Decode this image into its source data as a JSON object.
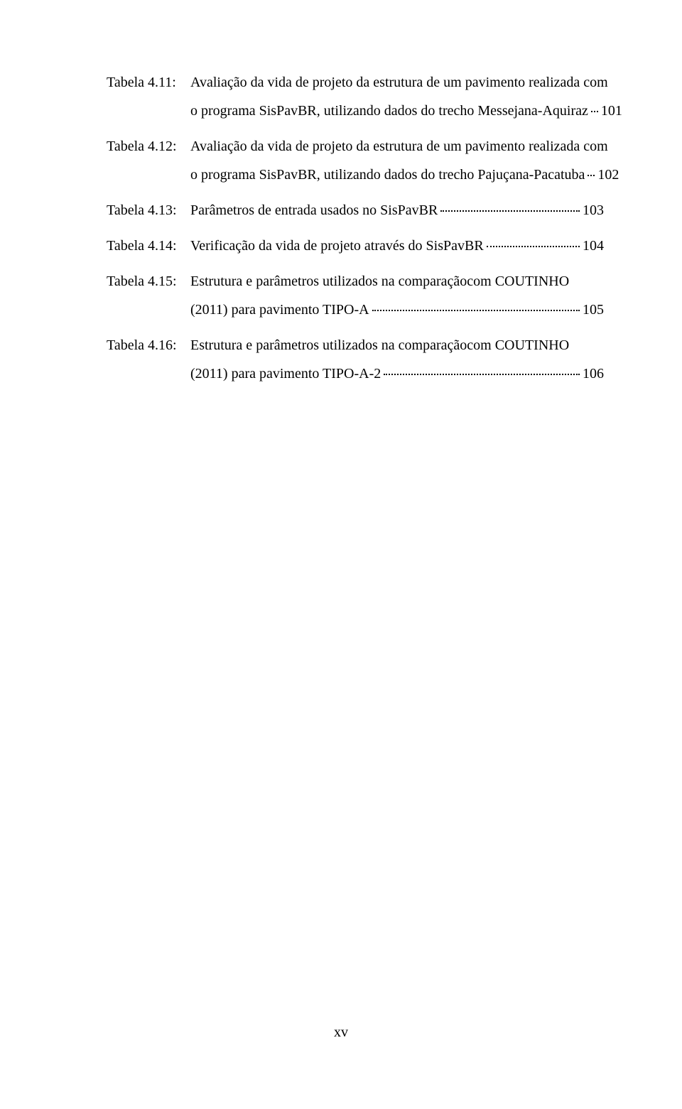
{
  "entries": [
    {
      "label": "Tabela 4.11:",
      "textLines": [
        "Avaliação da vida de projeto da estrutura de um pavimento realizada com",
        "o programa SisPavBR, utilizando dados do trecho Messejana-Aquiraz"
      ],
      "pageRef": "101"
    },
    {
      "label": "Tabela 4.12:",
      "textLines": [
        "Avaliação da vida de projeto da estrutura de um pavimento realizada com",
        "o programa SisPavBR, utilizando dados do trecho Pajuçana-Pacatuba"
      ],
      "pageRef": "102"
    },
    {
      "label": "Tabela 4.13:",
      "textLines": [
        "Parâmetros de entrada usados no SisPavBR"
      ],
      "pageRef": "103"
    },
    {
      "label": "Tabela 4.14:",
      "textLines": [
        "Verificação da vida de projeto através do SisPavBR"
      ],
      "pageRef": "104"
    },
    {
      "label": "Tabela 4.15:",
      "textLines": [
        "Estrutura  e  parâmetros  utilizados  na  comparaçãocom  COUTINHO",
        "(2011) para pavimento TIPO-A"
      ],
      "pageRef": "105"
    },
    {
      "label": "Tabela 4.16:",
      "textLines": [
        "Estrutura  e  parâmetros  utilizados  na  comparaçãocom  COUTINHO",
        "(2011) para pavimento TIPO-A-2"
      ],
      "pageRef": "106"
    }
  ],
  "footer": "xv"
}
